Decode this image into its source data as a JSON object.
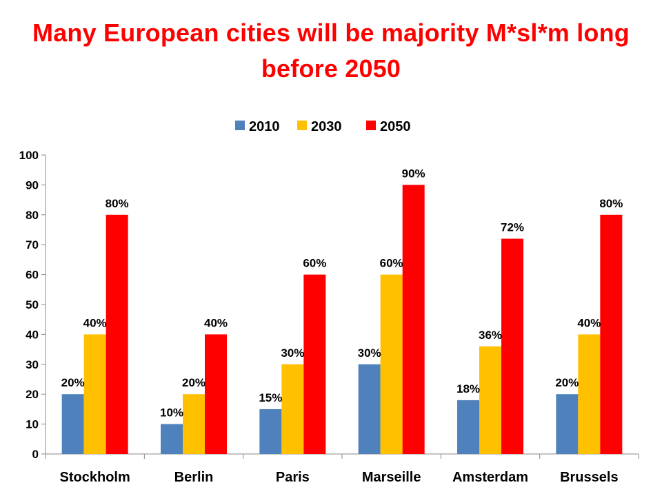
{
  "chart_data": {
    "type": "bar",
    "title": "Many European cities will be majority M*sl*m long before 2050",
    "categories": [
      "Stockholm",
      "Berlin",
      "Paris",
      "Marseille",
      "Amsterdam",
      "Brussels"
    ],
    "series": [
      {
        "name": "2010",
        "color": "#4f81bd",
        "values": [
          20,
          10,
          15,
          30,
          18,
          20
        ]
      },
      {
        "name": "2030",
        "color": "#ffc000",
        "values": [
          40,
          20,
          30,
          60,
          36,
          40
        ]
      },
      {
        "name": "2050",
        "color": "#ff0000",
        "values": [
          80,
          40,
          60,
          90,
          72,
          80
        ]
      }
    ],
    "value_suffix": "%",
    "yticks": [
      0,
      10,
      20,
      30,
      40,
      50,
      60,
      70,
      80,
      90,
      100
    ],
    "ylim": [
      0,
      100
    ],
    "legend_position": "top",
    "grid": false
  }
}
